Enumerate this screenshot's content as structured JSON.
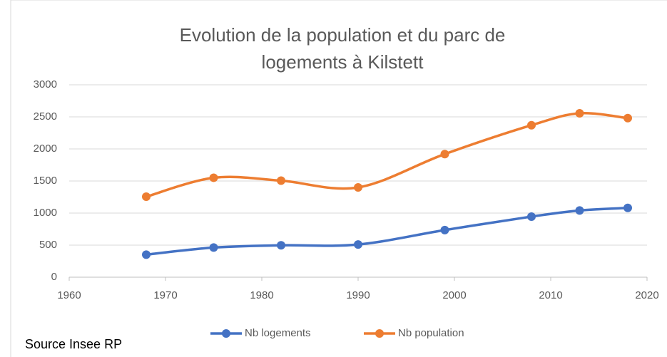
{
  "chart_data": {
    "type": "line",
    "title": "Evolution de la population et du parc de logements à Kilstett",
    "x": [
      1968,
      1975,
      1982,
      1990,
      1999,
      2008,
      2013,
      2018
    ],
    "series": [
      {
        "name": "Nb logements",
        "color": "#4472c4",
        "values": [
          352,
          462,
          497,
          510,
          735,
          945,
          1040,
          1080
        ]
      },
      {
        "name": "Nb population",
        "color": "#ed7d31",
        "values": [
          1255,
          1550,
          1505,
          1400,
          1920,
          2370,
          2555,
          2480
        ]
      }
    ],
    "xlim": [
      1960,
      2020
    ],
    "xticks": [
      1960,
      1970,
      1980,
      1990,
      2000,
      2010,
      2020
    ],
    "ylim": [
      0,
      3000
    ],
    "yticks": [
      0,
      500,
      1000,
      1500,
      2000,
      2500,
      3000
    ],
    "grid": true,
    "legend": "bottom",
    "annotation": "Source Insee RP"
  }
}
